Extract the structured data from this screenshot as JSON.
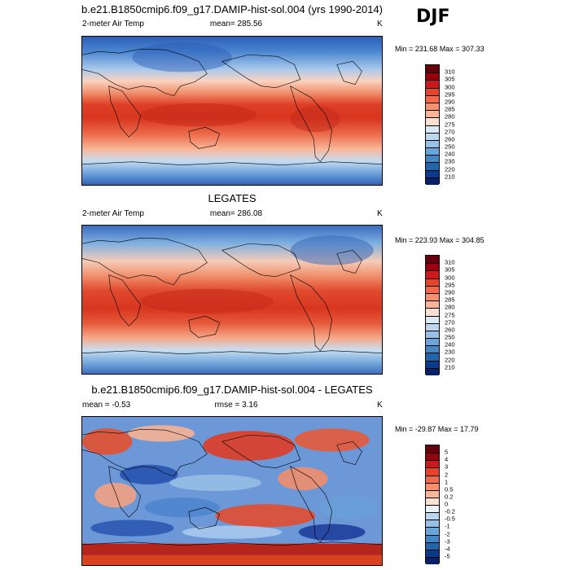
{
  "season": "DJF",
  "panels": [
    {
      "title": "b.e21.B1850cmip6.f09_g17.DAMIP-hist-sol.004 (yrs 1990-2014)",
      "left_label": "2-meter Air Temp",
      "center_label": "mean= 285.56",
      "units": "K",
      "minmax": "Min = 231.68 Max = 307.33",
      "colorbar_labels": [
        "310",
        "305",
        "300",
        "295",
        "290",
        "285",
        "280",
        "275",
        "270",
        "260",
        "250",
        "240",
        "230",
        "220",
        "210"
      ],
      "colorbar_colors": [
        "#67000d",
        "#99000d",
        "#cb181d",
        "#e6432a",
        "#f2694b",
        "#f8906e",
        "#fbb69a",
        "#fde0d2",
        "#dbe9f6",
        "#bcd6ee",
        "#97c1e6",
        "#6aa5d9",
        "#4286c4",
        "#2166ac",
        "#0a3a8c",
        "#08206a"
      ]
    },
    {
      "title": "LEGATES",
      "left_label": "2-meter Air Temp",
      "center_label": "mean= 286.08",
      "units": "K",
      "minmax": "Min = 223.93 Max = 304.85",
      "colorbar_labels": [
        "310",
        "305",
        "300",
        "295",
        "290",
        "285",
        "280",
        "275",
        "270",
        "260",
        "250",
        "240",
        "230",
        "220",
        "210"
      ],
      "colorbar_colors": [
        "#67000d",
        "#99000d",
        "#cb181d",
        "#e6432a",
        "#f2694b",
        "#f8906e",
        "#fbb69a",
        "#fde0d2",
        "#dbe9f6",
        "#bcd6ee",
        "#97c1e6",
        "#6aa5d9",
        "#4286c4",
        "#2166ac",
        "#0a3a8c",
        "#08206a"
      ]
    },
    {
      "title": "b.e21.B1850cmip6.f09_g17.DAMIP-hist-sol.004 - LEGATES",
      "left_label": "mean =  -0.53",
      "center_label": "rmse =   3.16",
      "units": "K",
      "minmax": "Min = -29.87 Max =  17.79",
      "colorbar_labels": [
        "5",
        "4",
        "3",
        "2",
        "1",
        "0.5",
        "0.2",
        "0",
        "-0.2",
        "-0.5",
        "-1",
        "-2",
        "-3",
        "-4",
        "-5"
      ],
      "colorbar_colors": [
        "#67000d",
        "#99000d",
        "#cb181d",
        "#e6432a",
        "#f2694b",
        "#f8906e",
        "#fbb69a",
        "#fde0d2",
        "#e9f2fb",
        "#bcd6ee",
        "#97c1e6",
        "#6aa5d9",
        "#4286c4",
        "#2166ac",
        "#0a3a8c",
        "#08206a"
      ]
    }
  ]
}
